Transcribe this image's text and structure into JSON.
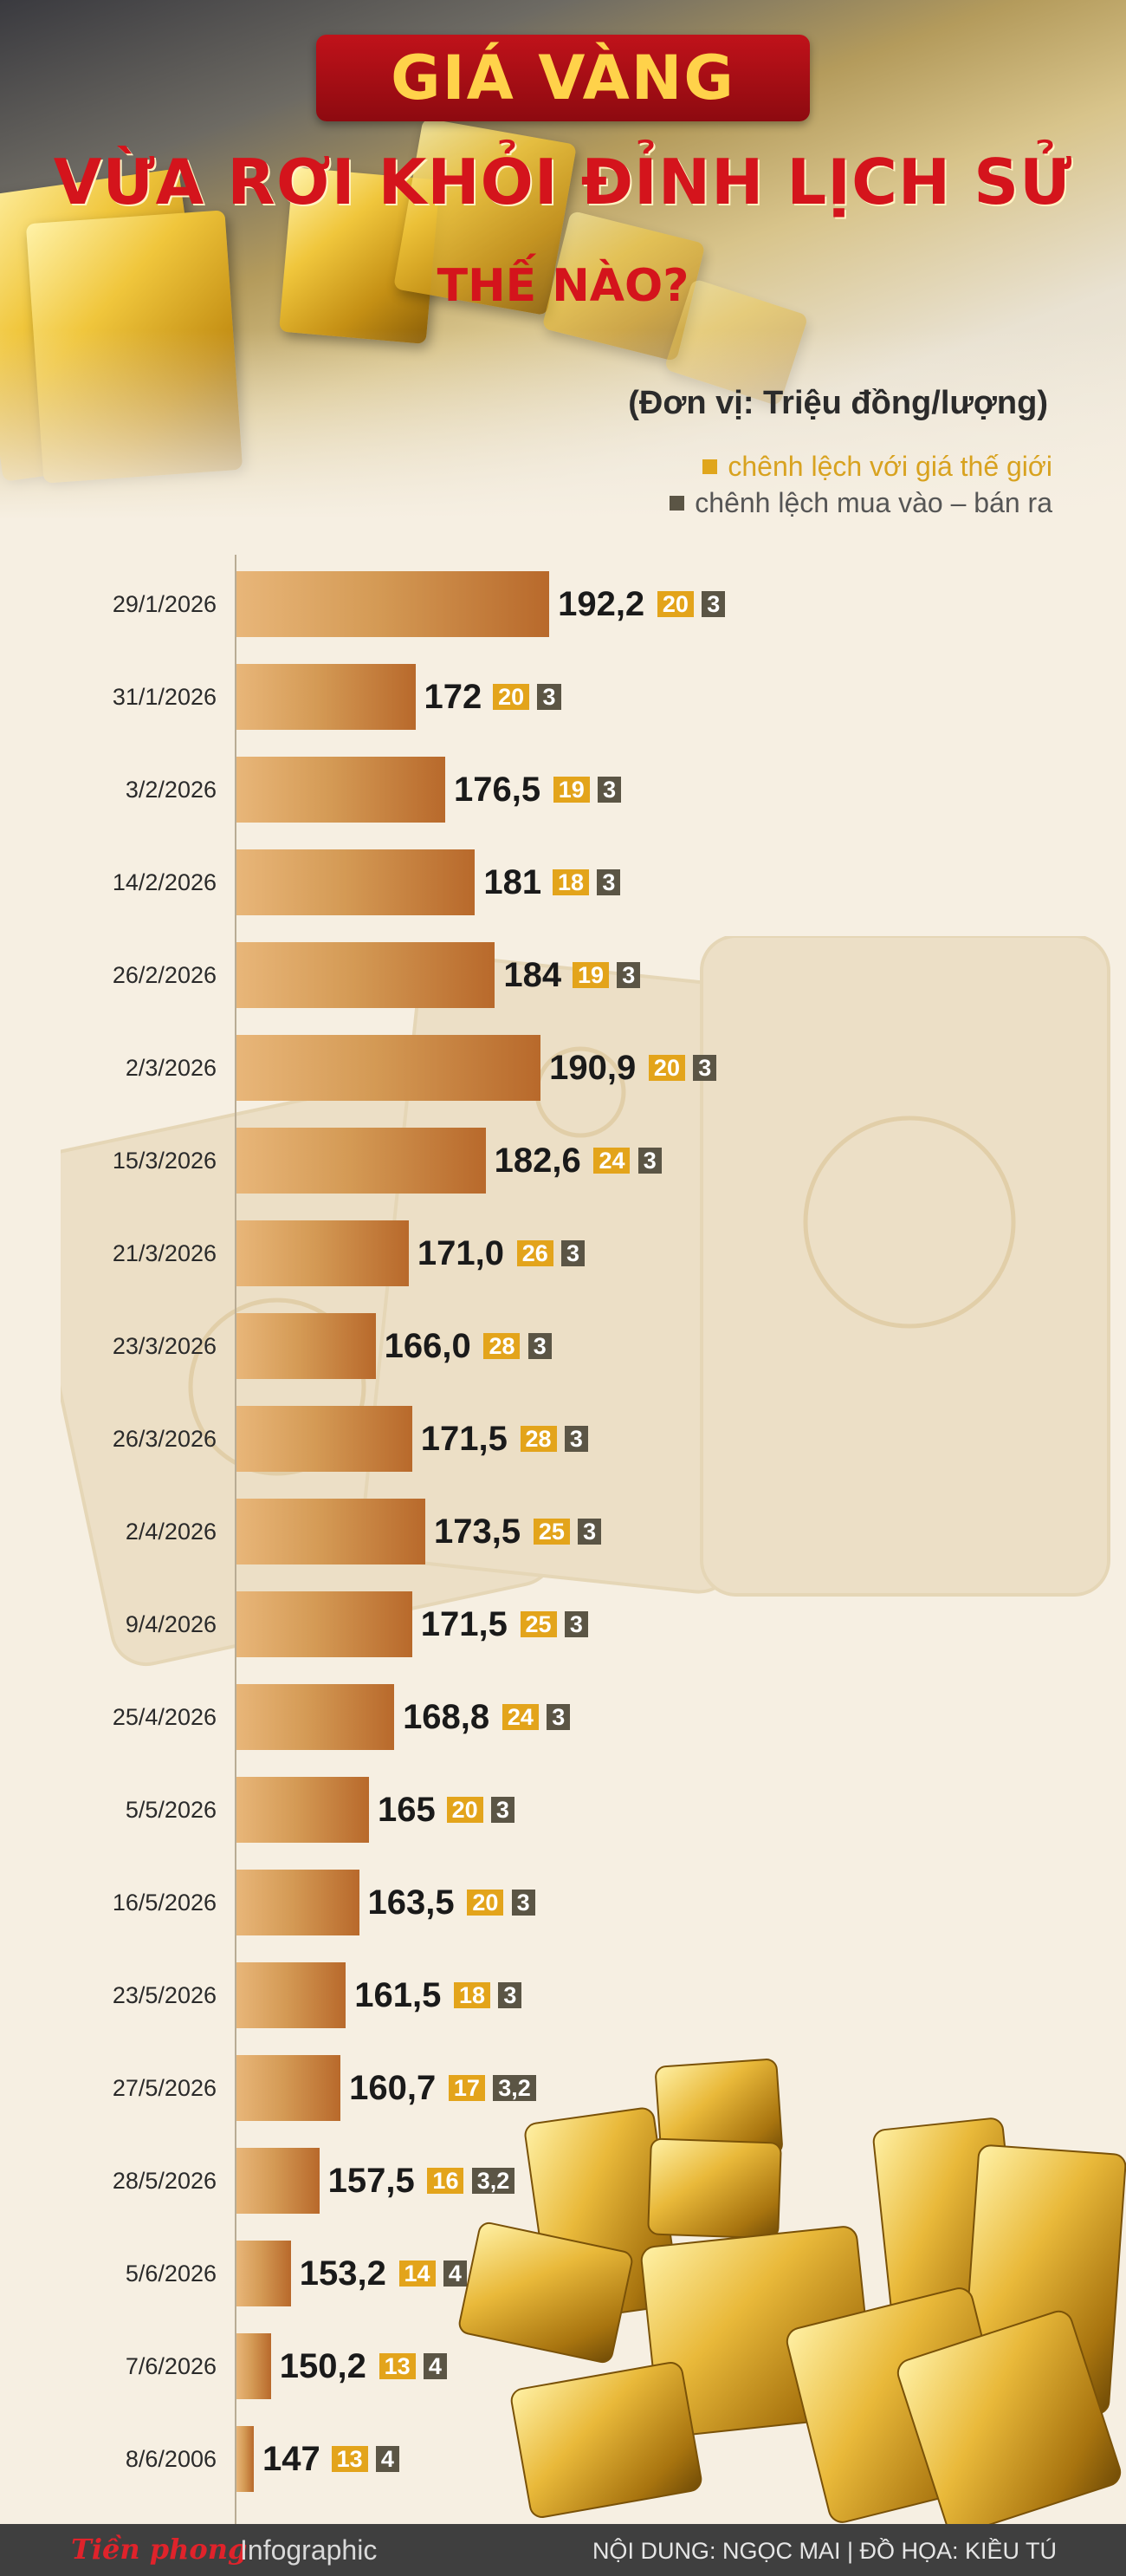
{
  "header": {
    "title_top": "GIÁ VÀNG",
    "title_line2": "VỪA RƠI KHỎI ĐỈNH LỊCH SỬ",
    "title_line3": "THẾ NÀO?",
    "unit": "(Đơn vị: Triệu đồng/lượng)"
  },
  "legend": {
    "gold": "chênh lệch với giá thế giới",
    "gray": "chênh lệch mua vào – bán ra"
  },
  "colors": {
    "gold_badge": "#e3a41b",
    "gray_badge": "#5b5545",
    "bar": "#c98943",
    "title_red": "#d4141c"
  },
  "chart_data": {
    "type": "bar",
    "orientation": "horizontal",
    "unit": "Triệu đồng/lượng",
    "categories": [
      "29/1/2026",
      "31/1/2026",
      "3/2/2026",
      "14/2/2026",
      "26/2/2026",
      "2/3/2026",
      "15/3/2026",
      "21/3/2026",
      "23/3/2026",
      "26/3/2026",
      "2/4/2026",
      "9/4/2026",
      "25/4/2026",
      "5/5/2026",
      "16/5/2026",
      "23/5/2026",
      "27/5/2026",
      "28/5/2026",
      "5/6/2026",
      "7/6/2026",
      "8/6/2006"
    ],
    "values": [
      192.2,
      172,
      176.5,
      181,
      184,
      190.9,
      182.6,
      171.0,
      166.0,
      171.5,
      173.5,
      171.5,
      168.8,
      165,
      163.5,
      161.5,
      160.7,
      157.5,
      153.2,
      150.2,
      147
    ],
    "value_labels": [
      "192,2",
      "172",
      "176,5",
      "181",
      "184",
      "190,9",
      "182,6",
      "171,0",
      "166,0",
      "171,5",
      "173,5",
      "171,5",
      "168,8",
      "165",
      "163,5",
      "161,5",
      "160,7",
      "157,5",
      "153,2",
      "150,2",
      "147"
    ],
    "series": [
      {
        "name": "chênh lệch với giá thế giới",
        "values": [
          "20",
          "20",
          "19",
          "18",
          "19",
          "20",
          "24",
          "26",
          "28",
          "28",
          "25",
          "25",
          "24",
          "20",
          "20",
          "18",
          "17",
          "16",
          "14",
          "13",
          "13"
        ]
      },
      {
        "name": "chênh lệch mua vào – bán ra",
        "values": [
          "3",
          "3",
          "3",
          "3",
          "3",
          "3",
          "3",
          "3",
          "3",
          "3",
          "3",
          "3",
          "3",
          "3",
          "3",
          "3",
          "3,2",
          "3,2",
          "4",
          "4",
          "4"
        ]
      }
    ]
  },
  "footer": {
    "brand": "Tiền phong",
    "section": "Infographic",
    "credits": "NỘI DUNG: NGỌC MAI | ĐỒ HỌA: KIỀU TÚ"
  }
}
